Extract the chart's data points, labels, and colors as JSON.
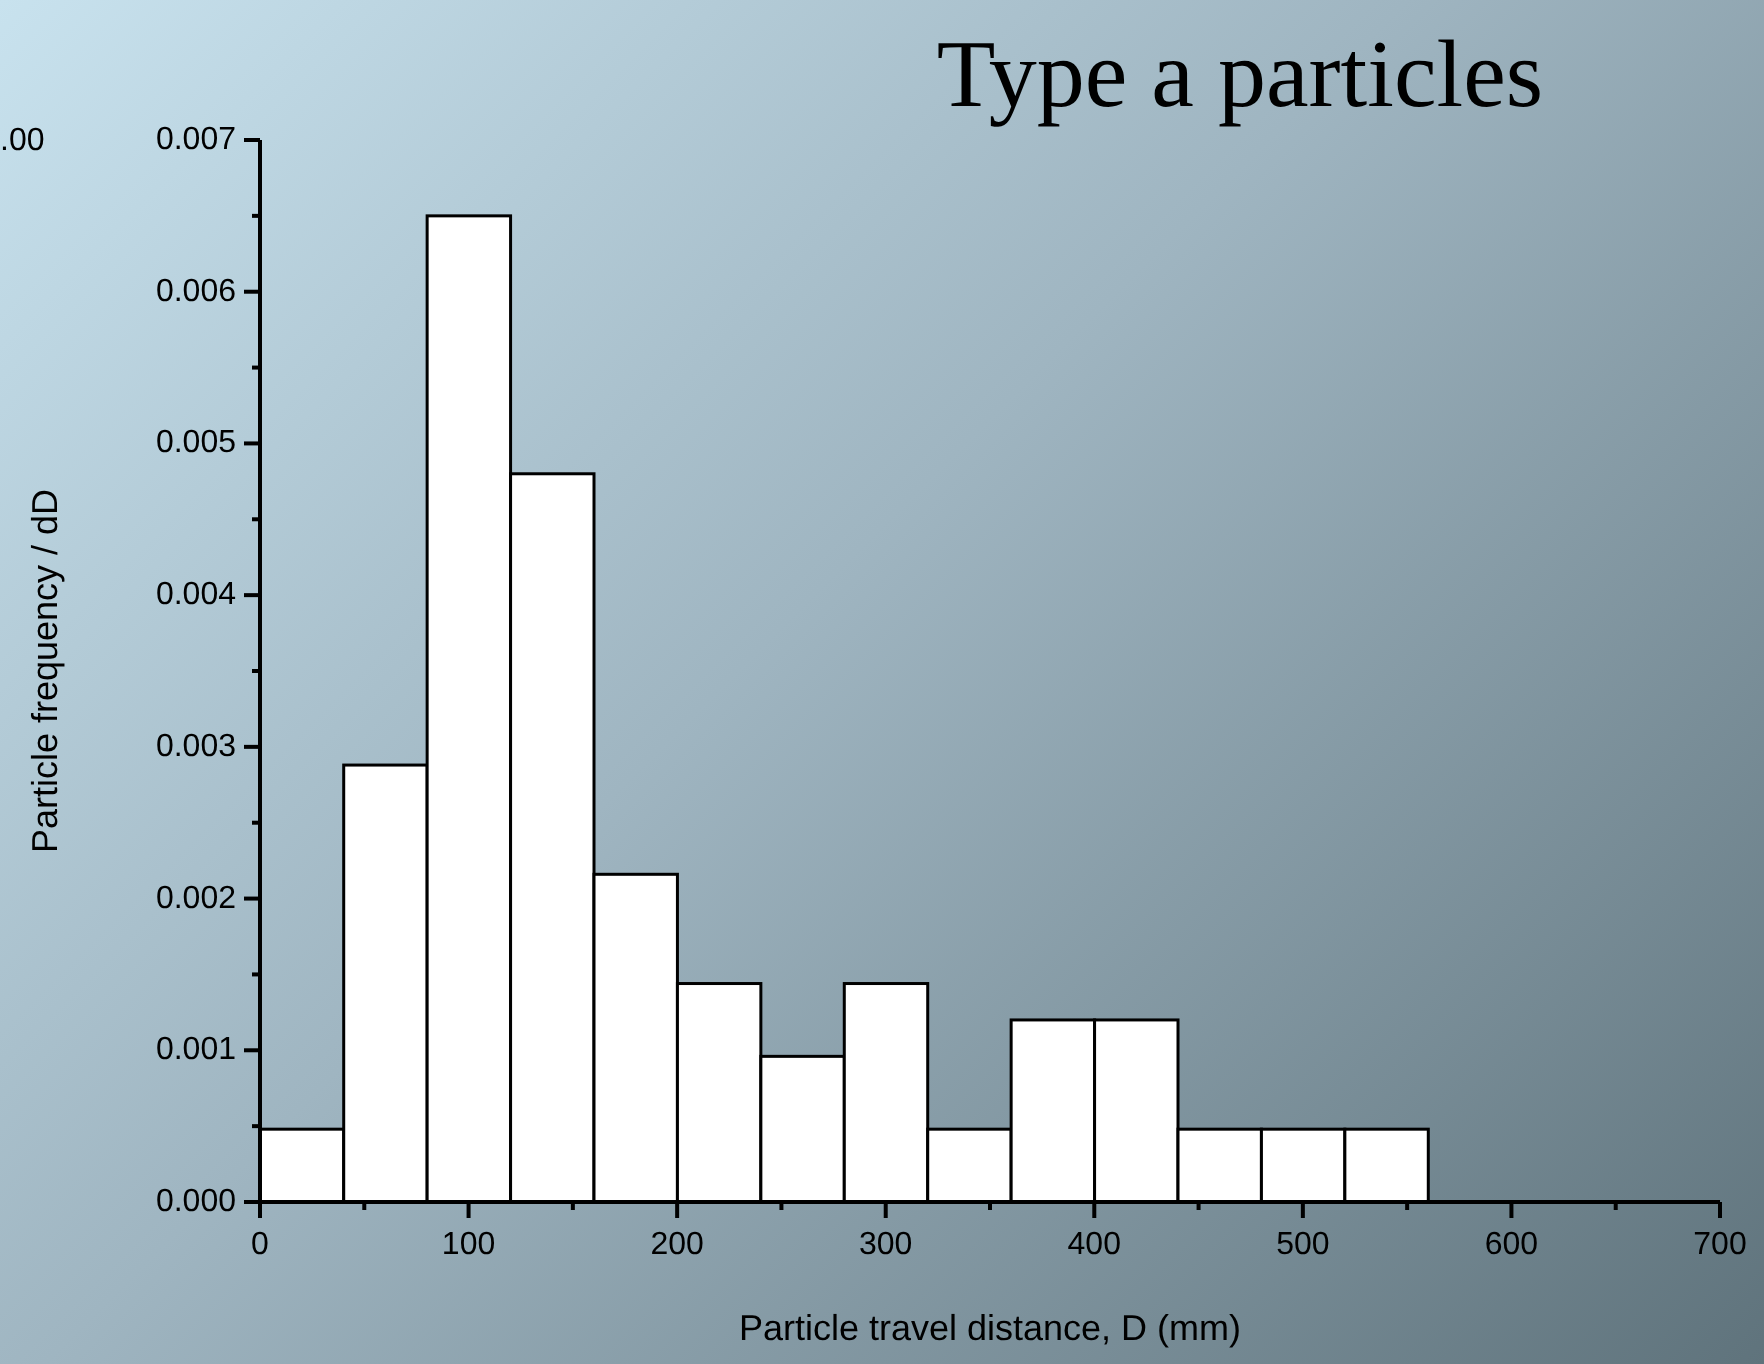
{
  "chart_data": {
    "type": "histogram",
    "title": "Type a particles",
    "xlabel": "Particle travel distance, D (mm)",
    "ylabel": "Particle frequency / dD",
    "annotations": [
      ".00"
    ],
    "bins": [
      0,
      40,
      80,
      120,
      160,
      200,
      240,
      280,
      320,
      360,
      400,
      440,
      480,
      520,
      560
    ],
    "values": [
      0.00048,
      0.00288,
      0.0065,
      0.0048,
      0.00216,
      0.00144,
      0.00096,
      0.00144,
      0.00048,
      0.0012,
      0.0012,
      0.00048,
      0.00048,
      0.00048
    ],
    "color": "#ffffff",
    "xlim": [
      0,
      700
    ],
    "xticks": [
      0,
      {
        "value": 50,
        "label": null
      },
      100,
      {
        "value": 150,
        "label": null
      },
      200,
      {
        "value": 250,
        "label": null
      },
      300,
      {
        "value": 350,
        "label": null
      },
      400,
      {
        "value": 450,
        "label": null
      },
      500,
      {
        "value": 550,
        "label": null
      },
      600,
      {
        "value": 650,
        "label": null
      },
      700
    ],
    "ylim": [
      0,
      0.007
    ],
    "yticks": [
      {
        "value": 0,
        "label": "0.000"
      },
      {
        "value": 0.0005,
        "label": null
      },
      {
        "value": 0.001,
        "label": "0.001"
      },
      {
        "value": 0.0015,
        "label": null
      },
      {
        "value": 0.002,
        "label": "0.002"
      },
      {
        "value": 0.0025,
        "label": null
      },
      {
        "value": 0.003,
        "label": "0.003"
      },
      {
        "value": 0.0035,
        "label": null
      },
      {
        "value": 0.004,
        "label": "0.004"
      },
      {
        "value": 0.0045,
        "label": null
      },
      {
        "value": 0.005,
        "label": "0.005"
      },
      {
        "value": 0.0055,
        "label": null
      },
      {
        "value": 0.006,
        "label": "0.006"
      },
      {
        "value": 0.0065,
        "label": null
      },
      {
        "value": 0.007,
        "label": "0.007"
      }
    ],
    "grid": false,
    "legend": false
  }
}
